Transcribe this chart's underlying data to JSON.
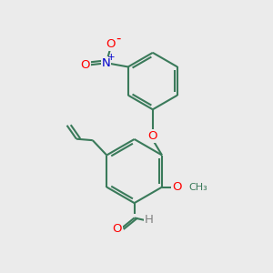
{
  "bg_color": "#ebebeb",
  "bond_color": "#3a7a5a",
  "bond_width": 1.5,
  "atom_colors": {
    "O": "#ff0000",
    "N": "#0000cd",
    "C": "#3a7a5a",
    "H": "#808080"
  },
  "font_size": 8.5,
  "fig_size": [
    3.0,
    3.0
  ],
  "dpi": 100
}
